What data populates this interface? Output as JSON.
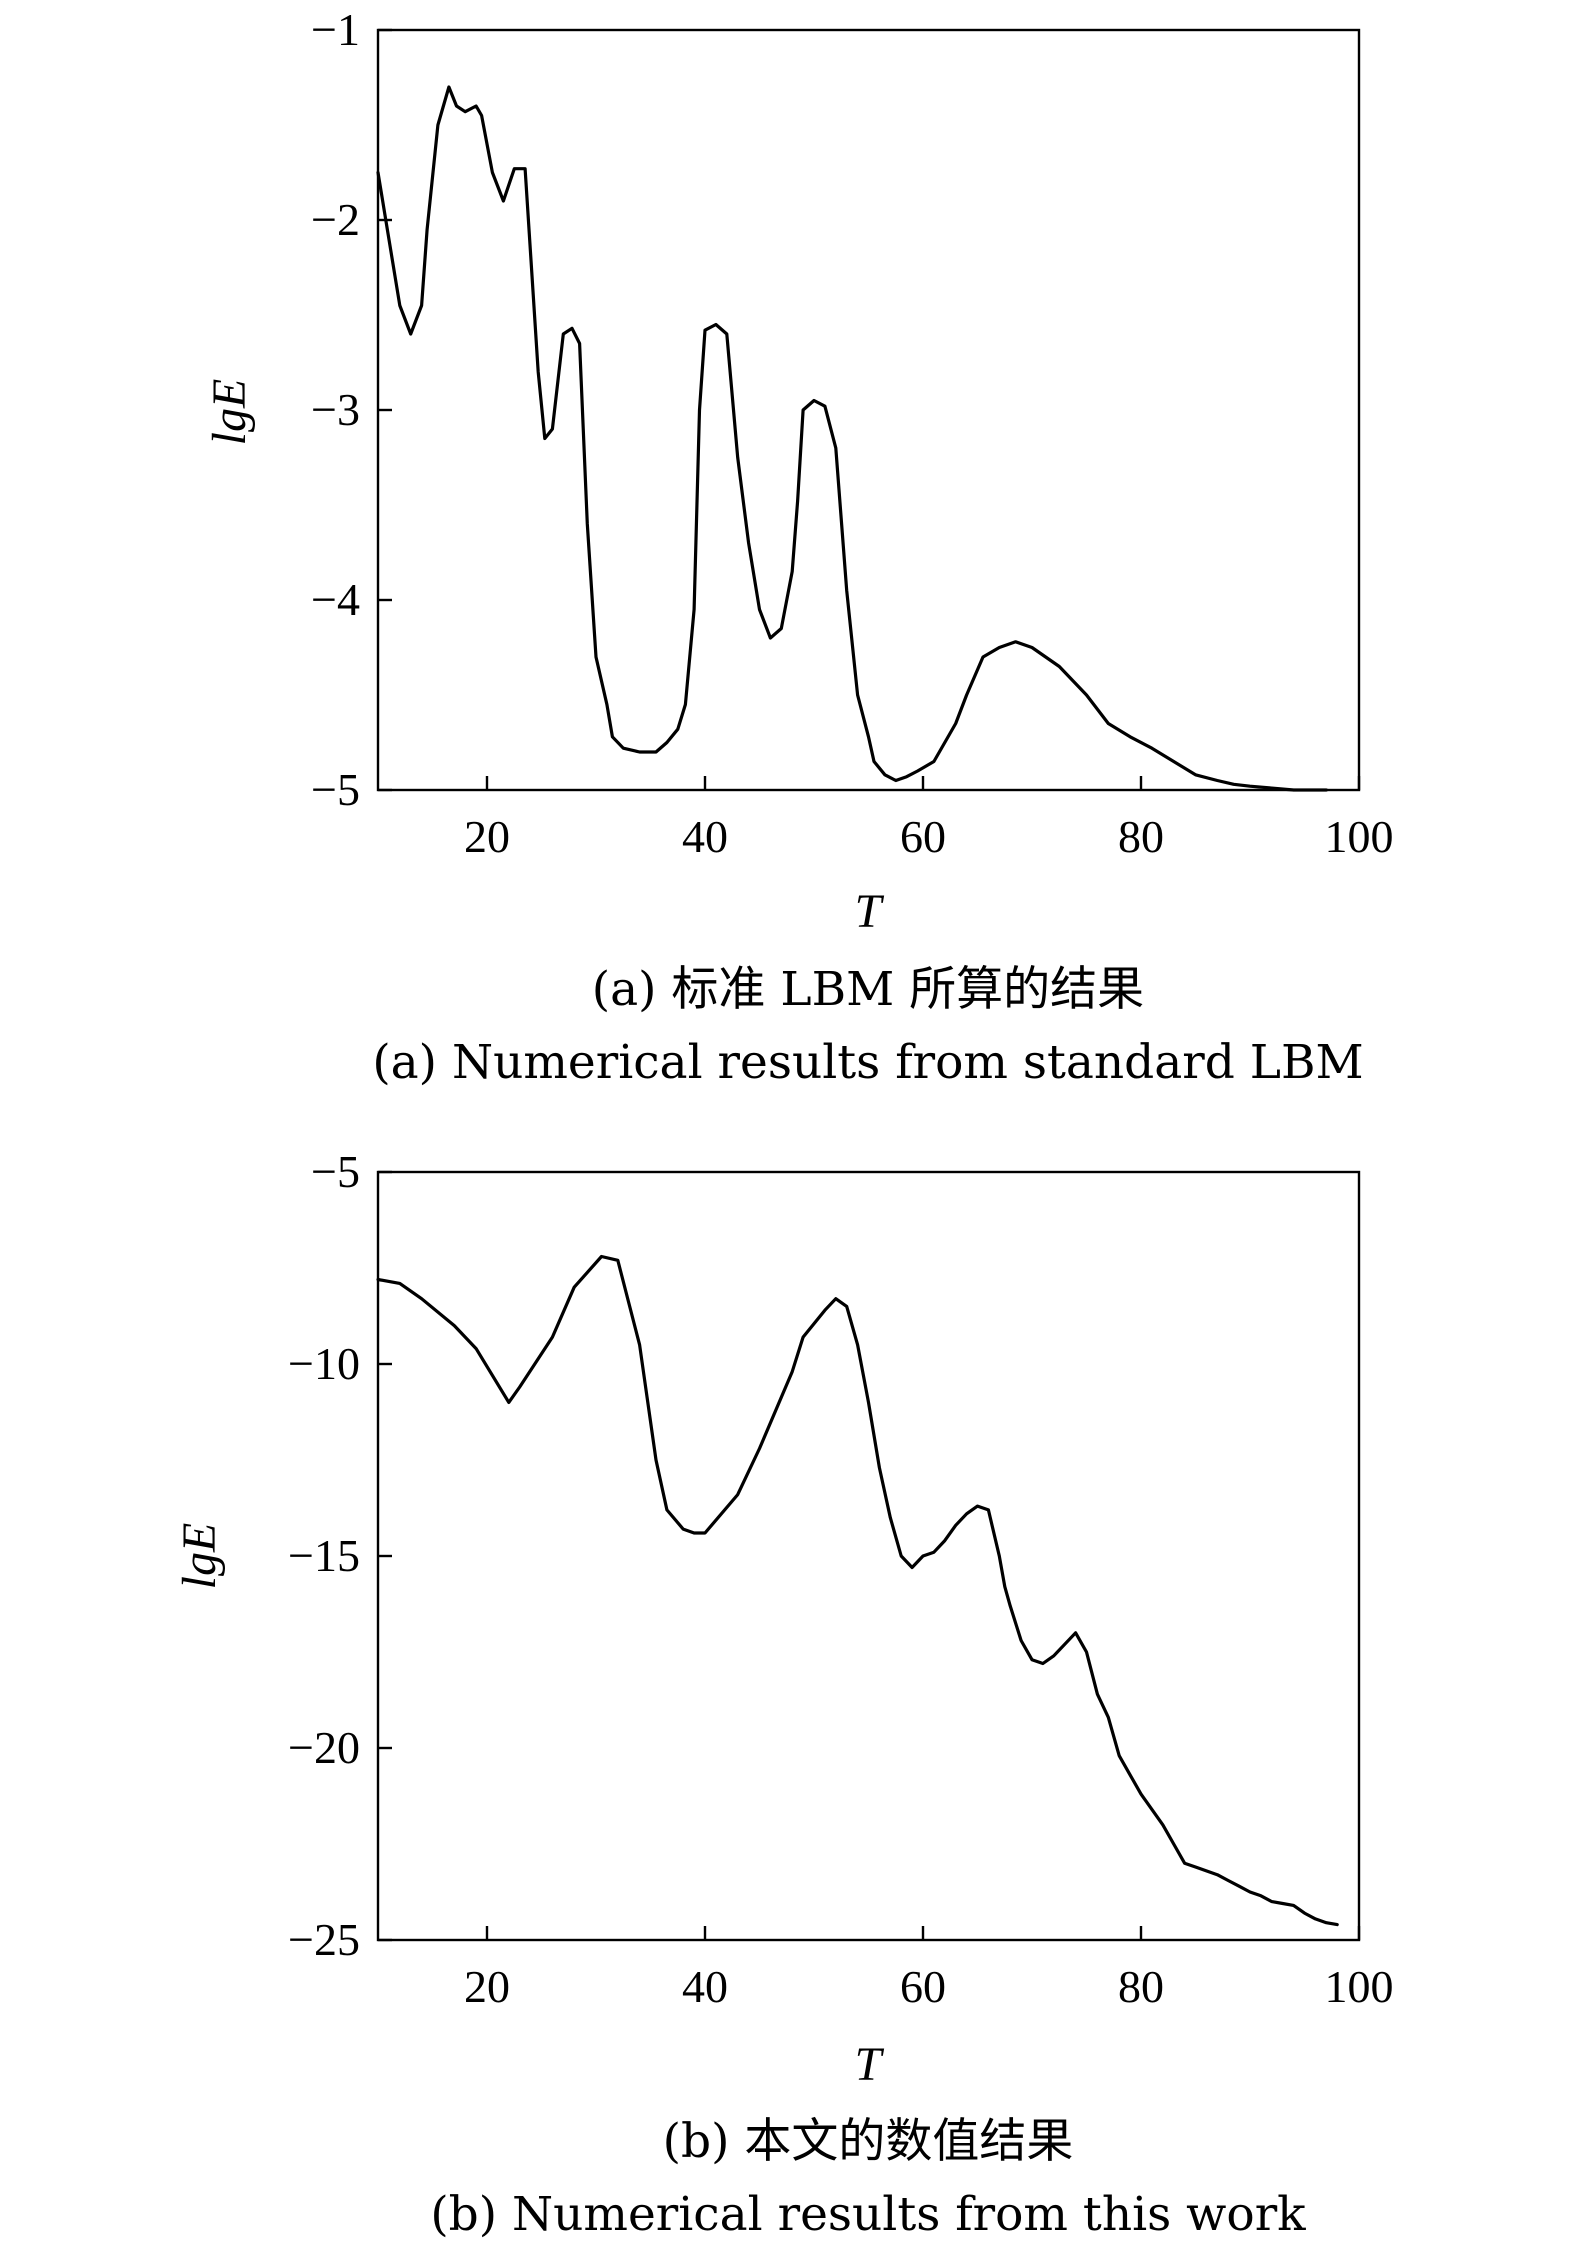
{
  "chart_data": [
    {
      "type": "line",
      "ylabel": "lgE",
      "xlabel": "T",
      "xlim": [
        10,
        100
      ],
      "ylim": [
        -5,
        -1
      ],
      "xticks": [
        "20",
        "40",
        "60",
        "80",
        "100"
      ],
      "yticks": [
        "−1",
        "−2",
        "−3",
        "−4",
        "−5"
      ],
      "caption_cn": "(a) 标准 LBM 所算的结果",
      "caption_en": "(a) Numerical results from standard LBM",
      "grid": false,
      "series": [
        {
          "x": [
            10,
            11,
            12,
            13,
            14,
            14.5,
            15.5,
            16.5,
            17.2,
            18,
            19,
            19.5,
            20.5,
            21.5,
            22.5,
            23.5,
            24.7,
            25.3,
            26,
            27,
            27.8,
            28.5,
            29.2,
            30,
            31,
            31.5,
            32.5,
            34,
            35.5,
            36.5,
            37.5,
            38.2,
            39,
            39.5,
            40,
            41,
            42,
            43,
            44,
            45,
            46,
            47,
            48,
            48.5,
            49,
            50,
            51,
            52,
            53,
            54,
            55,
            55.5,
            56.5,
            57.5,
            58.5,
            59.5,
            61,
            63,
            64,
            65.5,
            67,
            68.5,
            70,
            72.5,
            75,
            77,
            79,
            81,
            83,
            85,
            87,
            88.5,
            90,
            92,
            94,
            97
          ],
          "values": [
            -1.75,
            -2.1,
            -2.45,
            -2.6,
            -2.45,
            -2.05,
            -1.5,
            -1.3,
            -1.4,
            -1.43,
            -1.4,
            -1.45,
            -1.75,
            -1.9,
            -1.73,
            -1.73,
            -2.8,
            -3.15,
            -3.1,
            -2.6,
            -2.57,
            -2.65,
            -3.6,
            -4.3,
            -4.55,
            -4.72,
            -4.78,
            -4.8,
            -4.8,
            -4.75,
            -4.68,
            -4.55,
            -4.05,
            -3.0,
            -2.58,
            -2.55,
            -2.6,
            -3.25,
            -3.7,
            -4.05,
            -4.2,
            -4.15,
            -3.85,
            -3.48,
            -3.0,
            -2.95,
            -2.98,
            -3.2,
            -3.95,
            -4.5,
            -4.72,
            -4.85,
            -4.92,
            -4.95,
            -4.93,
            -4.9,
            -4.85,
            -4.65,
            -4.5,
            -4.3,
            -4.25,
            -4.22,
            -4.25,
            -4.35,
            -4.5,
            -4.65,
            -4.72,
            -4.78,
            -4.85,
            -4.92,
            -4.95,
            -4.97,
            -4.98,
            -4.99,
            -5.0,
            -5.0
          ]
        }
      ]
    },
    {
      "type": "line",
      "ylabel": "lgE",
      "xlabel": "T",
      "xlim": [
        10,
        100
      ],
      "ylim": [
        -25,
        -5
      ],
      "xticks": [
        "20",
        "40",
        "60",
        "80",
        "100"
      ],
      "yticks": [
        "−5",
        "−10",
        "−15",
        "−20",
        "−25"
      ],
      "caption_cn": "(b) 本文的数值结果",
      "caption_en": "(b) Numerical results from this work",
      "grid": false,
      "series": [
        {
          "x": [
            10,
            12,
            14,
            17,
            19,
            22,
            23,
            26,
            28,
            30.5,
            32,
            34,
            35.5,
            36.5,
            38,
            39,
            40,
            43,
            45,
            48,
            49,
            51,
            52,
            53,
            54,
            55,
            56,
            57,
            58,
            59,
            60,
            61,
            62,
            63,
            64,
            65,
            66,
            67,
            67.5,
            68,
            69,
            70,
            71,
            72,
            73,
            74,
            75,
            76,
            77,
            78,
            79,
            80,
            81,
            82,
            83,
            84,
            85,
            86,
            87,
            88,
            89,
            90,
            91,
            92,
            93,
            94,
            95,
            96,
            97,
            98
          ],
          "values": [
            -7.8,
            -7.9,
            -8.3,
            -9.0,
            -9.6,
            -11.0,
            -10.6,
            -9.3,
            -8.0,
            -7.2,
            -7.3,
            -9.5,
            -12.5,
            -13.8,
            -14.3,
            -14.4,
            -14.4,
            -13.4,
            -12.2,
            -10.2,
            -9.3,
            -8.6,
            -8.3,
            -8.5,
            -9.5,
            -11.0,
            -12.7,
            -14.0,
            -15.0,
            -15.3,
            -15.0,
            -14.9,
            -14.6,
            -14.2,
            -13.9,
            -13.7,
            -13.8,
            -15.0,
            -15.8,
            -16.3,
            -17.2,
            -17.7,
            -17.8,
            -17.6,
            -17.3,
            -17.0,
            -17.5,
            -18.6,
            -19.2,
            -20.2,
            -20.7,
            -21.2,
            -21.6,
            -22.0,
            -22.5,
            -23.0,
            -23.1,
            -23.2,
            -23.3,
            -23.45,
            -23.6,
            -23.75,
            -23.85,
            -24.0,
            -24.05,
            -24.1,
            -24.3,
            -24.45,
            -24.55,
            -24.6
          ]
        }
      ]
    }
  ]
}
